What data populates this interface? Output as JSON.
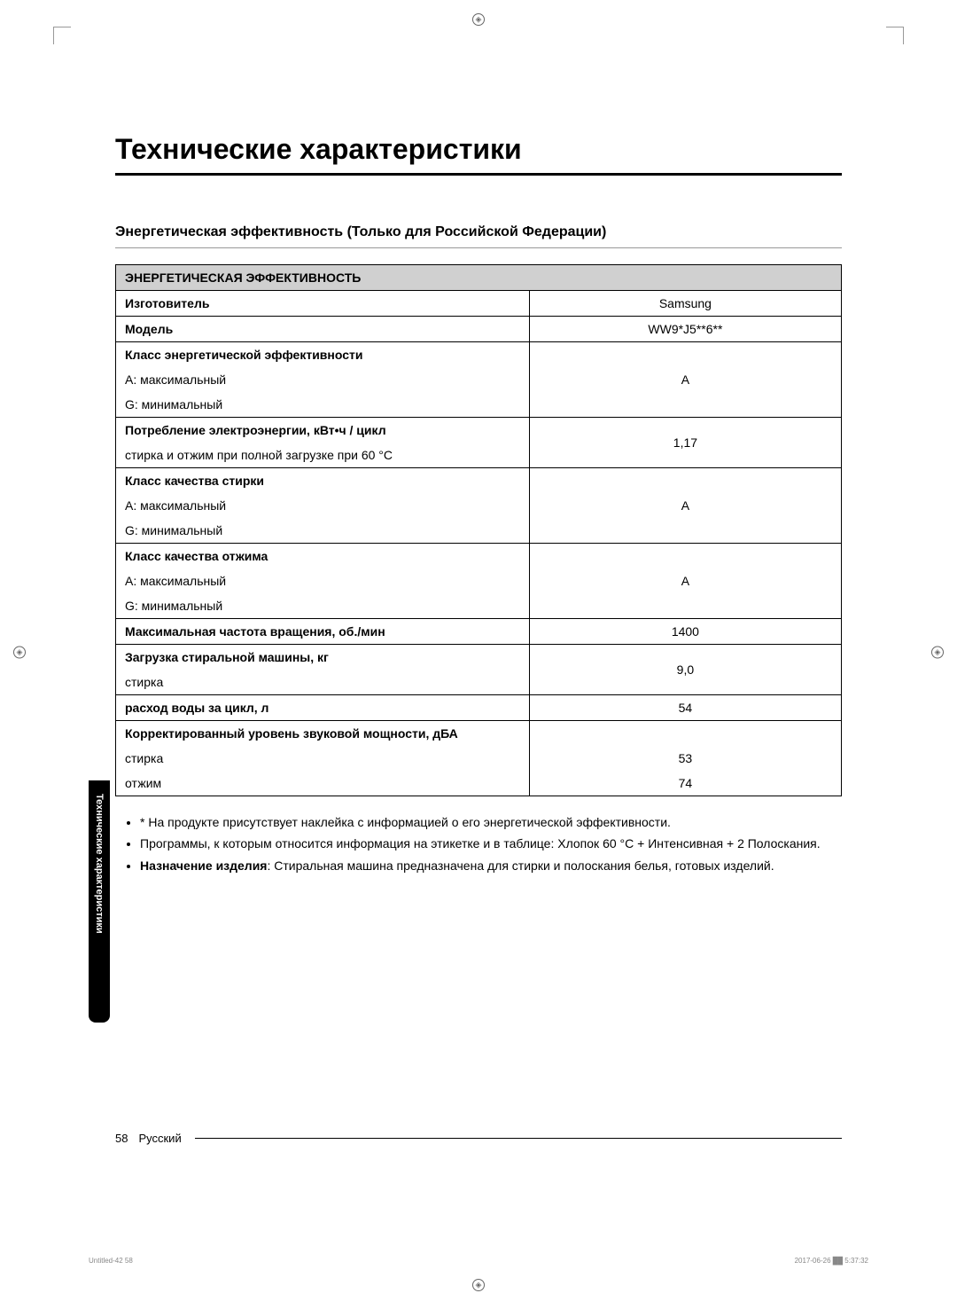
{
  "title": "Технические характеристики",
  "subtitle": "Энергетическая эффективность (Только для Российской Федерации)",
  "table": {
    "header": "ЭНЕРГЕТИЧЕСКАЯ ЭФФЕКТИВНОСТЬ",
    "manufacturer_label": "Изготовитель",
    "manufacturer_value": "Samsung",
    "model_label": "Модель",
    "model_value": "WW9*J5**6**",
    "energy_class_label": "Класс энергетической эффективности",
    "a_max": "A: максимальный",
    "g_min": "G: минимальный",
    "energy_class_value": "A",
    "power_consumption_label": "Потребление электроэнергии, кВт•ч / цикл",
    "power_consumption_sub": "стирка и отжим при полной загрузке при 60 °C",
    "power_consumption_value": "1,17",
    "wash_class_label": "Класс качества стирки",
    "wash_class_value": "A",
    "spin_class_label": "Класс качества отжима",
    "spin_class_value": "A",
    "max_rpm_label": "Максимальная частота вращения, об./мин",
    "max_rpm_value": "1400",
    "load_label": "Загрузка стиральной машины, кг",
    "load_sub": "стирка",
    "load_value": "9,0",
    "water_label": "расход воды за цикл, л",
    "water_value": "54",
    "noise_label": "Корректированный уровень звуковой мощности, дБА",
    "noise_wash_label": "стирка",
    "noise_wash_value": "53",
    "noise_spin_label": "отжим",
    "noise_spin_value": "74"
  },
  "notes": {
    "note1": "* На продукте присутствует наклейка с информацией о его энергетической эффективности.",
    "note2": "Программы, к которым относится информация на этикетке и в таблице: Хлопок 60 °C + Интенсивная + 2 Полоскания.",
    "note3_bold": "Назначение изделия",
    "note3_rest": ": Стиральная машина предназначена для стирки и полоскания белья, готовых изделий."
  },
  "side_tab": "Технические характеристики",
  "footer": {
    "page": "58",
    "lang": "Русский"
  },
  "meta": {
    "left": "Untitled-42   58",
    "right": "2017-06-26   ██ 5:37:32"
  }
}
